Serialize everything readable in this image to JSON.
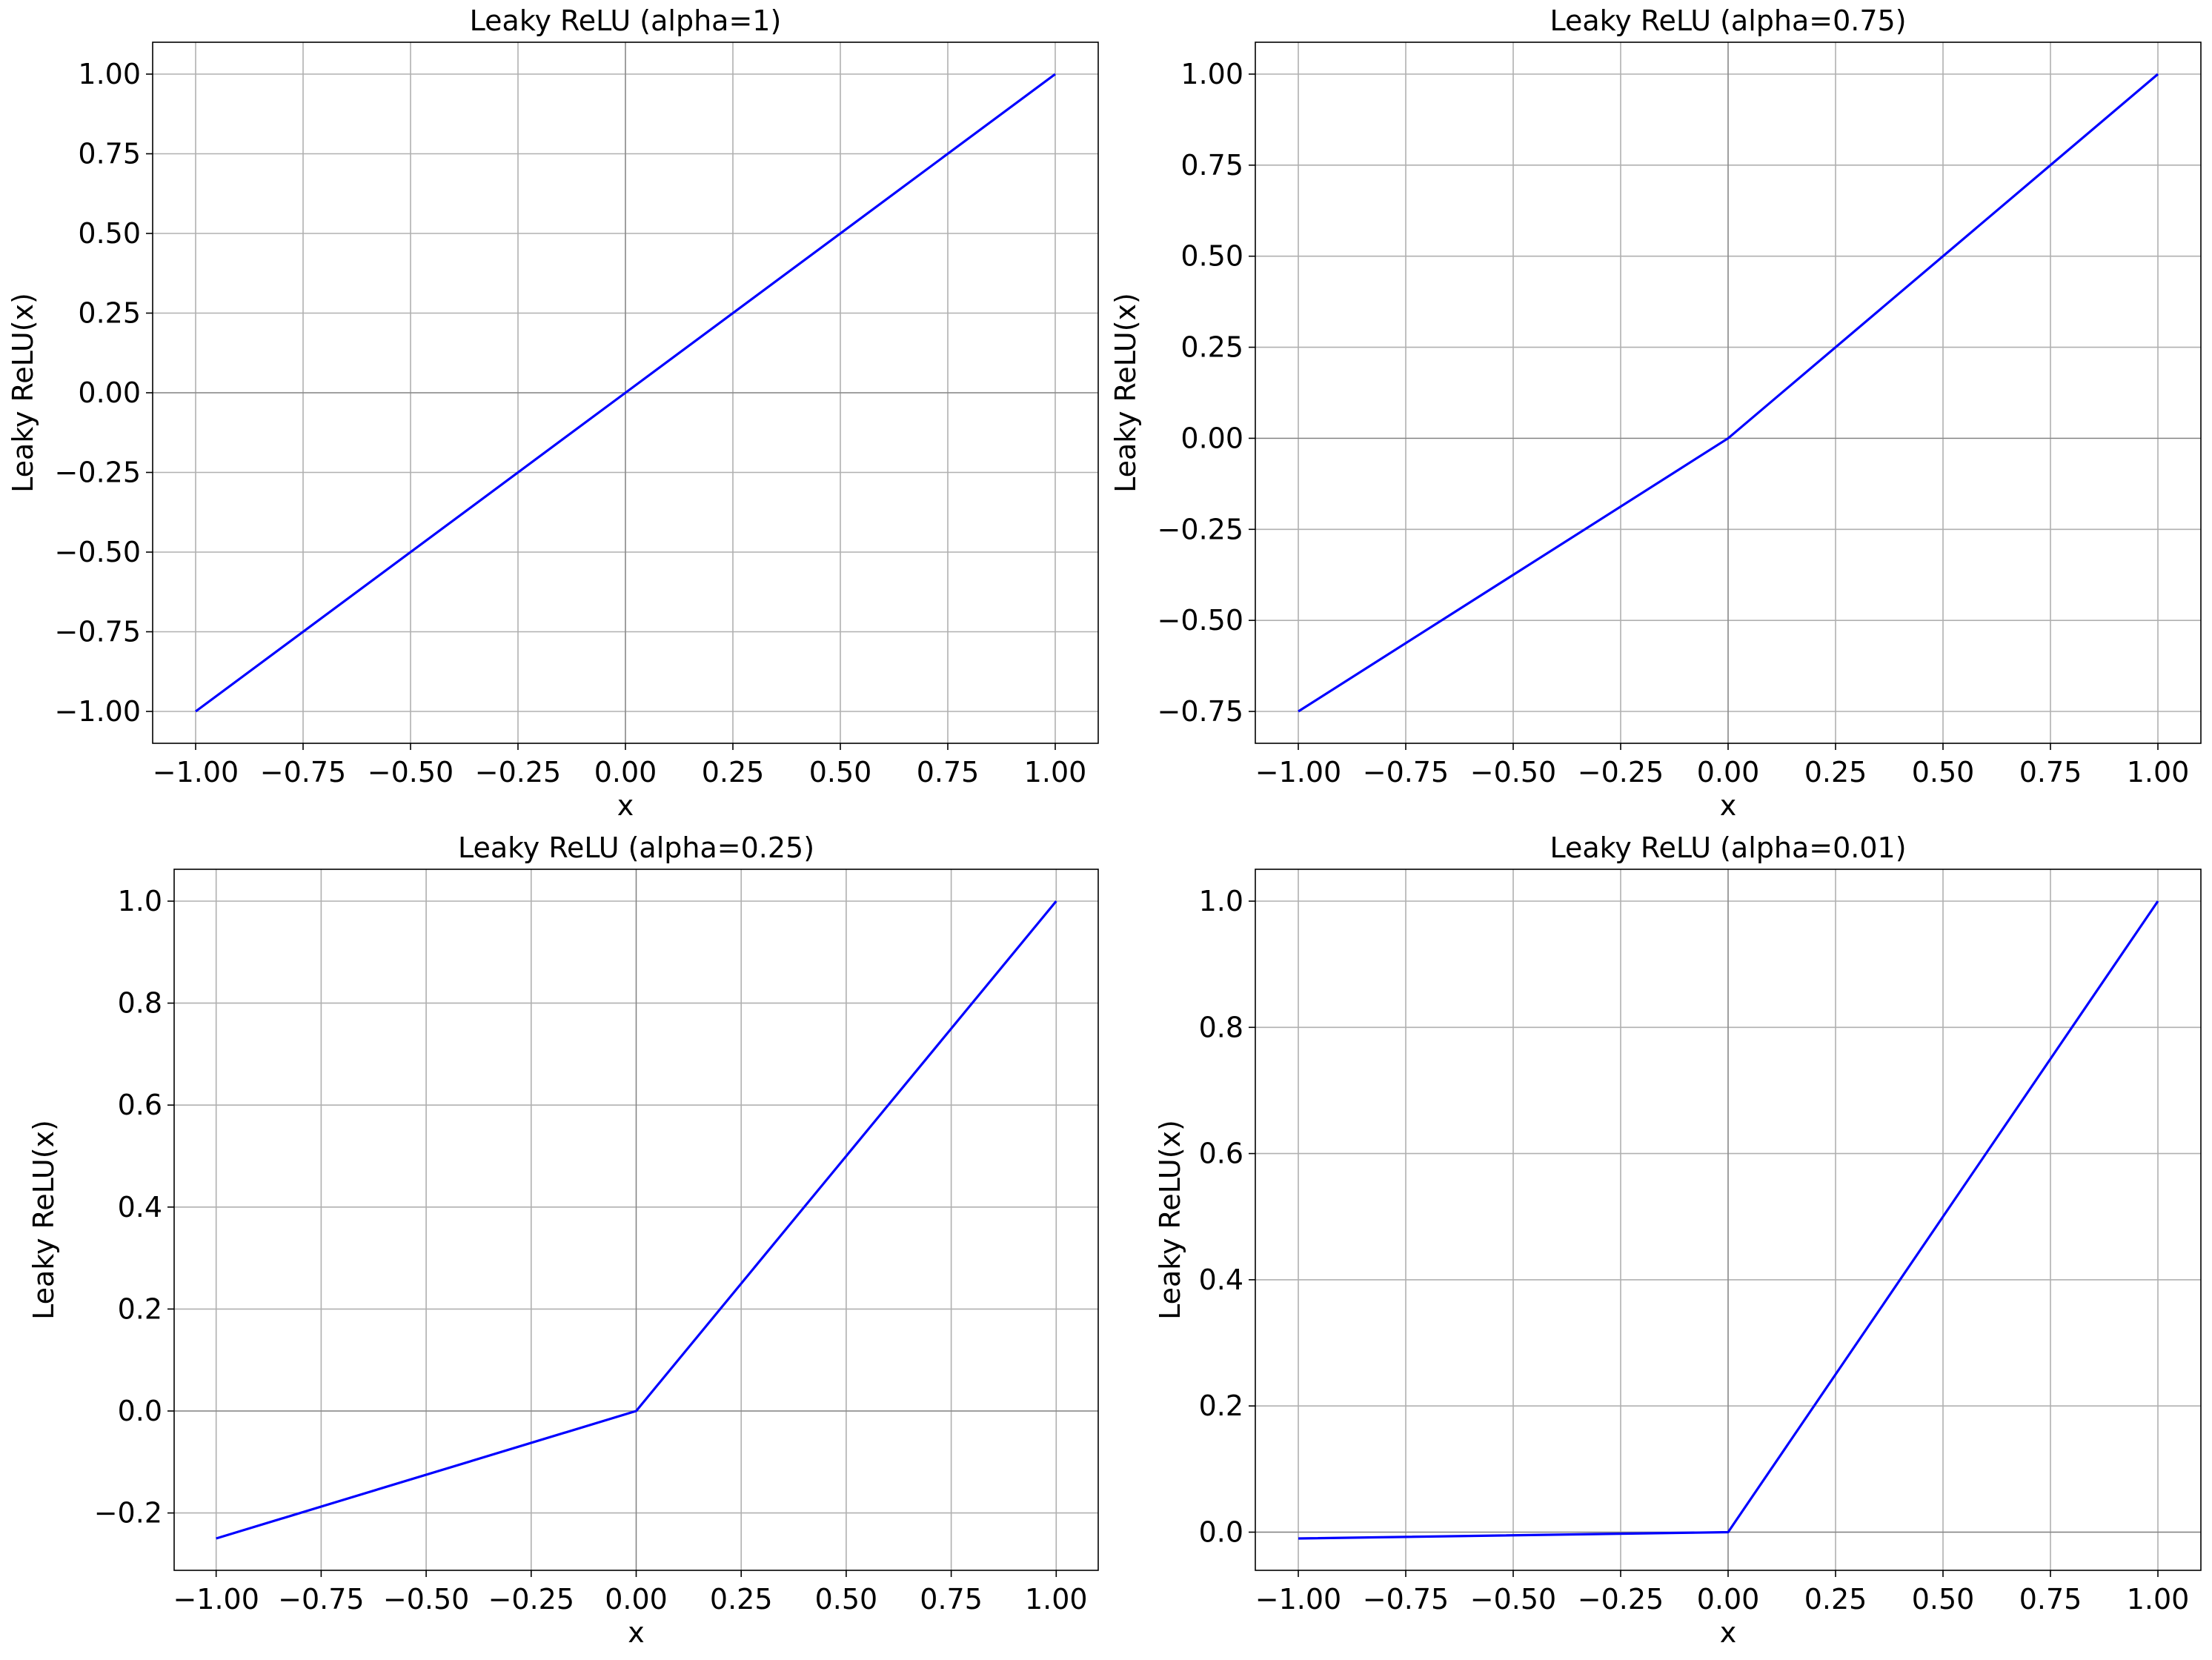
{
  "chart_data": [
    {
      "type": "line",
      "title": "Leaky ReLU (alpha=1)",
      "xlabel": "x",
      "ylabel": "Leaky ReLU(x)",
      "xlim": [
        -1.1,
        1.1
      ],
      "ylim": [
        -1.1,
        1.1
      ],
      "grid": true,
      "xticks": [
        -1.0,
        -0.75,
        -0.5,
        -0.25,
        0.0,
        0.25,
        0.5,
        0.75,
        1.0
      ],
      "xtick_labels": [
        "−1.00",
        "−0.75",
        "−0.50",
        "−0.25",
        "0.00",
        "0.25",
        "0.50",
        "0.75",
        "1.00"
      ],
      "yticks": [
        -1.0,
        -0.75,
        -0.5,
        -0.25,
        0.0,
        0.25,
        0.5,
        0.75,
        1.0
      ],
      "ytick_labels": [
        "−1.00",
        "−0.75",
        "−0.50",
        "−0.25",
        "0.00",
        "0.25",
        "0.50",
        "0.75",
        "1.00"
      ],
      "series": [
        {
          "color": "#0000ff",
          "x": [
            -1.0,
            0.0,
            1.0
          ],
          "y": [
            -1.0,
            0.0,
            1.0
          ]
        }
      ]
    },
    {
      "type": "line",
      "title": "Leaky ReLU (alpha=0.75)",
      "xlabel": "x",
      "ylabel": "Leaky ReLU(x)",
      "xlim": [
        -1.1,
        1.1
      ],
      "ylim": [
        -0.8375,
        1.0875
      ],
      "grid": true,
      "xticks": [
        -1.0,
        -0.75,
        -0.5,
        -0.25,
        0.0,
        0.25,
        0.5,
        0.75,
        1.0
      ],
      "xtick_labels": [
        "−1.00",
        "−0.75",
        "−0.50",
        "−0.25",
        "0.00",
        "0.25",
        "0.50",
        "0.75",
        "1.00"
      ],
      "yticks": [
        -0.75,
        -0.5,
        -0.25,
        0.0,
        0.25,
        0.5,
        0.75,
        1.0
      ],
      "ytick_labels": [
        "−0.75",
        "−0.50",
        "−0.25",
        "0.00",
        "0.25",
        "0.50",
        "0.75",
        "1.00"
      ],
      "series": [
        {
          "color": "#0000ff",
          "x": [
            -1.0,
            0.0,
            1.0
          ],
          "y": [
            -0.75,
            0.0,
            1.0
          ]
        }
      ]
    },
    {
      "type": "line",
      "title": "Leaky ReLU (alpha=0.25)",
      "xlabel": "x",
      "ylabel": "Leaky ReLU(x)",
      "xlim": [
        -1.1,
        1.1
      ],
      "ylim": [
        -0.3125,
        1.0625
      ],
      "grid": true,
      "xticks": [
        -1.0,
        -0.75,
        -0.5,
        -0.25,
        0.0,
        0.25,
        0.5,
        0.75,
        1.0
      ],
      "xtick_labels": [
        "−1.00",
        "−0.75",
        "−0.50",
        "−0.25",
        "0.00",
        "0.25",
        "0.50",
        "0.75",
        "1.00"
      ],
      "yticks": [
        -0.2,
        0.0,
        0.2,
        0.4,
        0.6,
        0.8,
        1.0
      ],
      "ytick_labels": [
        "−0.2",
        "0.0",
        "0.2",
        "0.4",
        "0.6",
        "0.8",
        "1.0"
      ],
      "series": [
        {
          "color": "#0000ff",
          "x": [
            -1.0,
            0.0,
            1.0
          ],
          "y": [
            -0.25,
            0.0,
            1.0
          ]
        }
      ]
    },
    {
      "type": "line",
      "title": "Leaky ReLU (alpha=0.01)",
      "xlabel": "x",
      "ylabel": "Leaky ReLU(x)",
      "xlim": [
        -1.1,
        1.1
      ],
      "ylim": [
        -0.0605,
        1.0505
      ],
      "grid": true,
      "xticks": [
        -1.0,
        -0.75,
        -0.5,
        -0.25,
        0.0,
        0.25,
        0.5,
        0.75,
        1.0
      ],
      "xtick_labels": [
        "−1.00",
        "−0.75",
        "−0.50",
        "−0.25",
        "0.00",
        "0.25",
        "0.50",
        "0.75",
        "1.00"
      ],
      "yticks": [
        0.0,
        0.2,
        0.4,
        0.6,
        0.8,
        1.0
      ],
      "ytick_labels": [
        "0.0",
        "0.2",
        "0.4",
        "0.6",
        "0.8",
        "1.0"
      ],
      "series": [
        {
          "color": "#0000ff",
          "x": [
            -1.0,
            0.0,
            1.0
          ],
          "y": [
            -0.01,
            0.0,
            1.0
          ]
        }
      ]
    }
  ]
}
